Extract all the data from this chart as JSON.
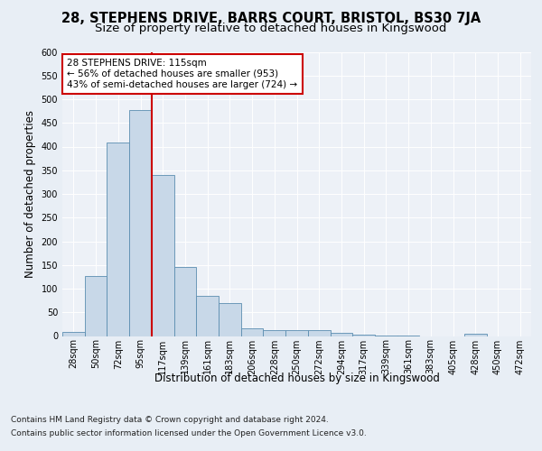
{
  "title": "28, STEPHENS DRIVE, BARRS COURT, BRISTOL, BS30 7JA",
  "subtitle": "Size of property relative to detached houses in Kingswood",
  "xlabel": "Distribution of detached houses by size in Kingswood",
  "ylabel": "Number of detached properties",
  "bar_labels": [
    "28sqm",
    "50sqm",
    "72sqm",
    "95sqm",
    "117sqm",
    "139sqm",
    "161sqm",
    "183sqm",
    "206sqm",
    "228sqm",
    "250sqm",
    "272sqm",
    "294sqm",
    "317sqm",
    "339sqm",
    "361sqm",
    "383sqm",
    "405sqm",
    "428sqm",
    "450sqm",
    "472sqm"
  ],
  "bar_values": [
    8,
    127,
    408,
    477,
    340,
    146,
    85,
    70,
    17,
    13,
    13,
    13,
    7,
    3,
    1,
    1,
    0,
    0,
    4,
    0,
    0
  ],
  "bar_color": "#c8d8e8",
  "bar_edge_color": "#5b8db0",
  "vline_color": "#cc0000",
  "vline_x": 3.5,
  "annotation_line1": "28 STEPHENS DRIVE: 115sqm",
  "annotation_line2": "← 56% of detached houses are smaller (953)",
  "annotation_line3": "43% of semi-detached houses are larger (724) →",
  "ylim": [
    0,
    600
  ],
  "yticks": [
    0,
    50,
    100,
    150,
    200,
    250,
    300,
    350,
    400,
    450,
    500,
    550,
    600
  ],
  "footer1": "Contains HM Land Registry data © Crown copyright and database right 2024.",
  "footer2": "Contains public sector information licensed under the Open Government Licence v3.0.",
  "bg_color": "#e8eef5",
  "plot_bg_color": "#edf1f7",
  "title_fontsize": 10.5,
  "subtitle_fontsize": 9.5,
  "ylabel_fontsize": 8.5,
  "xlabel_fontsize": 8.5,
  "tick_fontsize": 7,
  "ann_fontsize": 7.5,
  "footer_fontsize": 6.5
}
